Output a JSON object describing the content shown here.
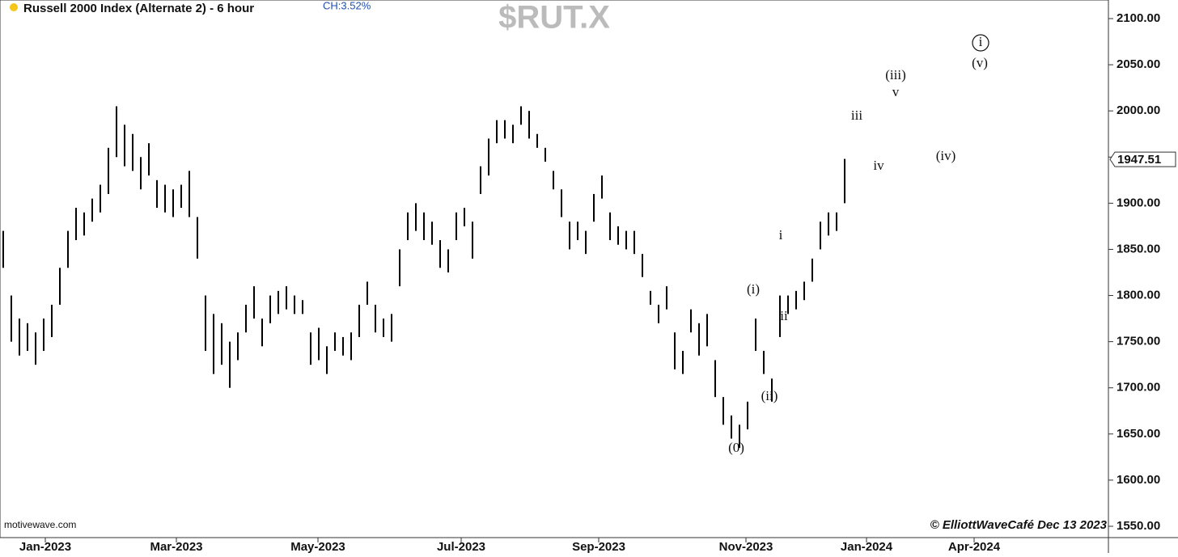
{
  "chart_data": {
    "type": "hl_bar",
    "title": "Russell 2000 Index (Alternate 2) - 6 hour",
    "change_label": "CH:3.52%",
    "symbol": "$RUT.X",
    "source": "motivewave.com",
    "credit": "© ElliottWaveCafé Dec 13 2023",
    "color": "#000000",
    "last_price": 1947.51,
    "high": [
      1870,
      1800,
      1775,
      1770,
      1760,
      1775,
      1790,
      1830,
      1870,
      1895,
      1890,
      1905,
      1920,
      1960,
      2005,
      1985,
      1975,
      1950,
      1965,
      1925,
      1920,
      1915,
      1920,
      1935,
      1885,
      1800,
      1780,
      1770,
      1750,
      1760,
      1790,
      1810,
      1775,
      1800,
      1805,
      1810,
      1800,
      1795,
      1760,
      1765,
      1745,
      1760,
      1755,
      1760,
      1790,
      1815,
      1790,
      1775,
      1780,
      1850,
      1890,
      1900,
      1890,
      1880,
      1860,
      1850,
      1890,
      1895,
      1880,
      1940,
      1970,
      1990,
      1990,
      1985,
      2005,
      2000,
      1975,
      1960,
      1935,
      1915,
      1880,
      1880,
      1870,
      1910,
      1930,
      1890,
      1875,
      1870,
      1870,
      1845,
      1805,
      1790,
      1810,
      1760,
      1740,
      1785,
      1770,
      1780,
      1730,
      1690,
      1670,
      1660,
      1685,
      1775,
      1740,
      1710,
      1800,
      1800,
      1805,
      1815,
      1840,
      1880,
      1890,
      1890,
      1948
    ],
    "low": [
      1830,
      1750,
      1735,
      1740,
      1725,
      1740,
      1755,
      1790,
      1830,
      1860,
      1865,
      1880,
      1890,
      1910,
      1950,
      1940,
      1935,
      1915,
      1930,
      1895,
      1890,
      1885,
      1895,
      1885,
      1840,
      1740,
      1715,
      1725,
      1700,
      1730,
      1760,
      1775,
      1745,
      1770,
      1780,
      1785,
      1780,
      1780,
      1725,
      1730,
      1715,
      1740,
      1735,
      1730,
      1755,
      1790,
      1760,
      1755,
      1750,
      1810,
      1860,
      1870,
      1860,
      1855,
      1830,
      1825,
      1860,
      1875,
      1840,
      1910,
      1930,
      1965,
      1970,
      1965,
      1985,
      1970,
      1960,
      1945,
      1915,
      1885,
      1850,
      1860,
      1845,
      1880,
      1905,
      1860,
      1855,
      1850,
      1845,
      1820,
      1790,
      1770,
      1785,
      1720,
      1715,
      1760,
      1735,
      1745,
      1690,
      1660,
      1645,
      1635,
      1655,
      1740,
      1715,
      1685,
      1755,
      1780,
      1785,
      1795,
      1815,
      1850,
      1865,
      1870,
      1900
    ],
    "ylim": [
      1550,
      2100
    ],
    "yticks": [
      {
        "value": 1550,
        "label": "1550.00"
      },
      {
        "value": 1600,
        "label": "1600.00"
      },
      {
        "value": 1650,
        "label": "1650.00"
      },
      {
        "value": 1700,
        "label": "1700.00"
      },
      {
        "value": 1750,
        "label": "1750.00"
      },
      {
        "value": 1800,
        "label": "1800.00"
      },
      {
        "value": 1850,
        "label": "1850.00"
      },
      {
        "value": 1900,
        "label": "1900.00"
      },
      {
        "value": 1950,
        "label": "1950.00"
      },
      {
        "value": 2000,
        "label": "2000.00"
      },
      {
        "value": 2050,
        "label": "2050.00"
      },
      {
        "value": 2100,
        "label": "2100.00"
      }
    ],
    "xlim": [
      -0.4,
      136.6
    ],
    "xticks": [
      {
        "value": 5.2,
        "label": "Jan-2023"
      },
      {
        "value": 21.4,
        "label": "Mar-2023"
      },
      {
        "value": 38.9,
        "label": "May-2023"
      },
      {
        "value": 56.6,
        "label": "Jul-2023"
      },
      {
        "value": 73.6,
        "label": "Sep-2023"
      },
      {
        "value": 91.8,
        "label": "Nov-2023"
      },
      {
        "value": 106.7,
        "label": "Jan-2024"
      },
      {
        "value": 120,
        "label": "Apr-2024"
      }
    ],
    "annotations": [
      "(0)",
      "(i)",
      "(ii)",
      "i",
      "ii",
      "iii",
      "iv",
      "v",
      "(iii)",
      "(iv)",
      "(v)",
      "i"
    ]
  }
}
